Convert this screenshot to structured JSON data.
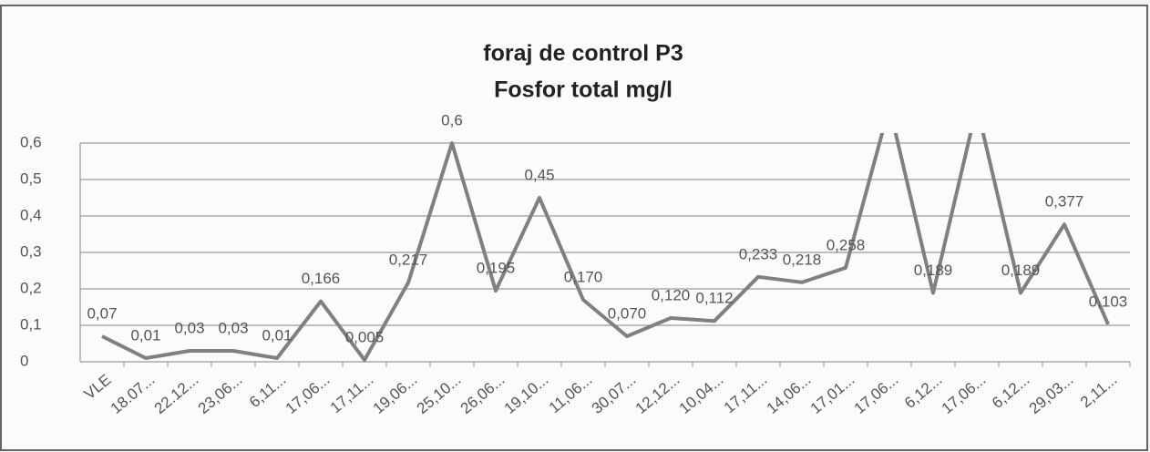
{
  "chart_data": {
    "type": "line",
    "title": "foraj de control P3",
    "subtitle": "Fosfor total mg/l",
    "categories": [
      "VLE",
      "18.07...",
      "22.12...",
      "23,06...",
      "6,11...",
      "17,06...",
      "17,11...",
      "19,06...",
      "25,10...",
      "26,06...",
      "19,10...",
      "11,06...",
      "30,07...",
      "12,12...",
      "10,04...",
      "17,11...",
      "14,06...",
      "17,01...",
      "17,06...",
      "6,12...",
      "17,06...",
      "6,12...",
      "29,03...",
      "2,11..."
    ],
    "series": [
      {
        "name": "Fosfor total",
        "color": "#808080",
        "values": [
          0.07,
          0.01,
          0.03,
          0.03,
          0.01,
          0.166,
          0.005,
          0.217,
          0.6,
          0.195,
          0.45,
          0.17,
          0.07,
          0.12,
          0.112,
          0.233,
          0.218,
          0.258,
          0.7,
          0.189,
          0.7,
          0.189,
          0.377,
          0.103
        ],
        "value_labels": [
          "0,07",
          "0,01",
          "0,03",
          "0,03",
          "0,01",
          "0,166",
          "0,005",
          "0,217",
          "0,6",
          "0,195",
          "0,45",
          "0,170",
          "0,070",
          "0,120",
          "0,112",
          "0,233",
          "0,218",
          "0,258",
          null,
          "0,189",
          null,
          "0,189",
          "0,377",
          "0,103"
        ]
      }
    ],
    "ylim": [
      0,
      0.6
    ],
    "yticks": [
      0,
      {
        "value": 0.1,
        "label": "0,1"
      },
      {
        "value": 0.2,
        "label": "0,2"
      },
      {
        "value": 0.3,
        "label": "0,3"
      },
      {
        "value": 0.4,
        "label": "0,4"
      },
      {
        "value": 0.5,
        "label": "0,5"
      },
      {
        "value": 0.6,
        "label": "0,6"
      }
    ],
    "grid": true
  }
}
